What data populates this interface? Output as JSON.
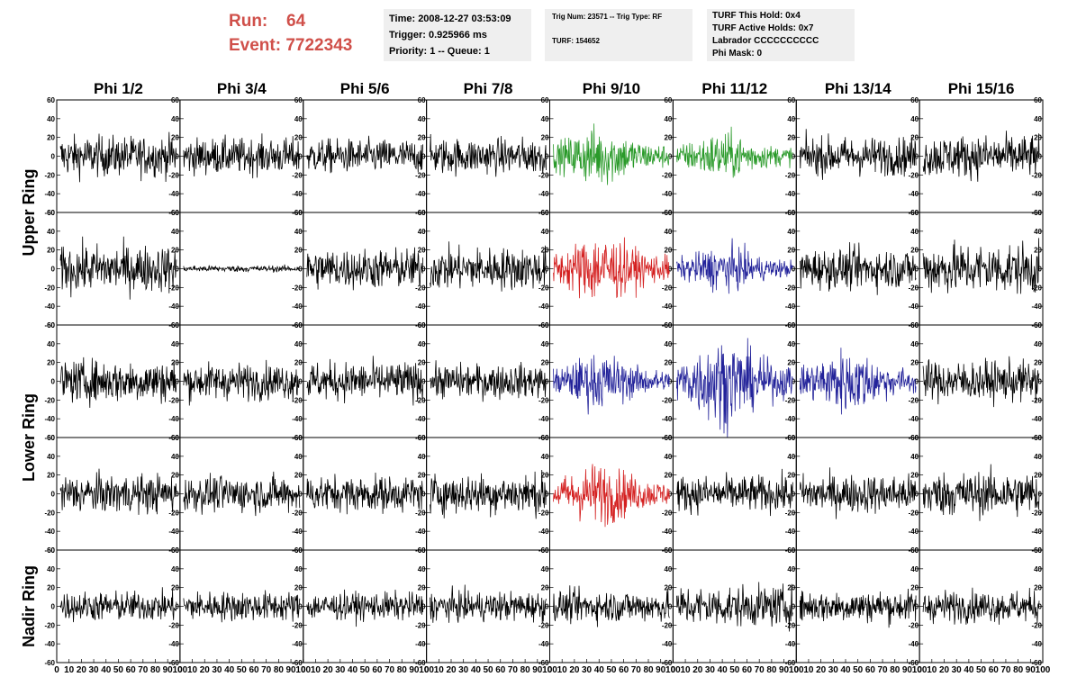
{
  "run": {
    "run_label": "Run:",
    "run_value": "64",
    "event_label": "Event:",
    "event_value": "7722343"
  },
  "info_time": {
    "time": "Time: 2008-12-27 03:53:09",
    "trigger": "Trigger: 0.925966 ms",
    "priority": "Priority: 1 -- Queue: 1"
  },
  "info_trig": {
    "trig": "Trig Num: 23571 -- Trig Type: RF",
    "turf": "TURF: 154652"
  },
  "info_turf": {
    "hold": "TURF This Hold: 0x4",
    "active": "TURF Active Holds: 0x7",
    "labrador": "Labrador CCCCCCCCCC",
    "phimask": "Phi Mask: 0"
  },
  "colors": {
    "header_red": "#d0504a",
    "panel_bg": "#efefef",
    "green": "#2a9a2a",
    "red": "#d42020",
    "blue": "#23239a",
    "black": "#000000"
  },
  "chart_data": {
    "type": "line",
    "columns": [
      "Phi 1/2",
      "Phi 3/4",
      "Phi 5/6",
      "Phi 7/8",
      "Phi 9/10",
      "Phi 11/12",
      "Phi 13/14",
      "Phi 15/16"
    ],
    "ring_labels": [
      "Upper Ring",
      "Lower Ring",
      "Nadir Ring"
    ],
    "xlim": [
      0,
      100
    ],
    "ylim": [
      -60,
      60
    ],
    "x_ticks": [
      "0",
      "10",
      "20",
      "30",
      "40",
      "50",
      "60",
      "70",
      "80",
      "90",
      "100"
    ],
    "y_ticks": [
      "60",
      "40",
      "20",
      "0",
      "-20",
      "-40",
      "-60"
    ],
    "trace_colors": [
      [
        "black",
        "black",
        "black",
        "black",
        "green",
        "green",
        "black",
        "black"
      ],
      [
        "black",
        "black",
        "black",
        "black",
        "red",
        "blue",
        "black",
        "black"
      ],
      [
        "black",
        "black",
        "black",
        "black",
        "blue",
        "blue",
        "blue",
        "black"
      ],
      [
        "black",
        "black",
        "black",
        "black",
        "red",
        "black",
        "black",
        "black"
      ],
      [
        "black",
        "black",
        "black",
        "black",
        "black",
        "black",
        "black",
        "black"
      ]
    ],
    "amplitudes": [
      [
        19,
        17,
        16,
        17,
        24,
        19,
        18,
        20
      ],
      [
        22,
        3,
        19,
        20,
        28,
        18,
        19,
        24
      ],
      [
        20,
        17,
        18,
        16,
        22,
        35,
        26,
        19
      ],
      [
        18,
        17,
        17,
        19,
        25,
        17,
        18,
        21
      ],
      [
        14,
        14,
        13,
        14,
        15,
        19,
        15,
        15
      ]
    ]
  }
}
